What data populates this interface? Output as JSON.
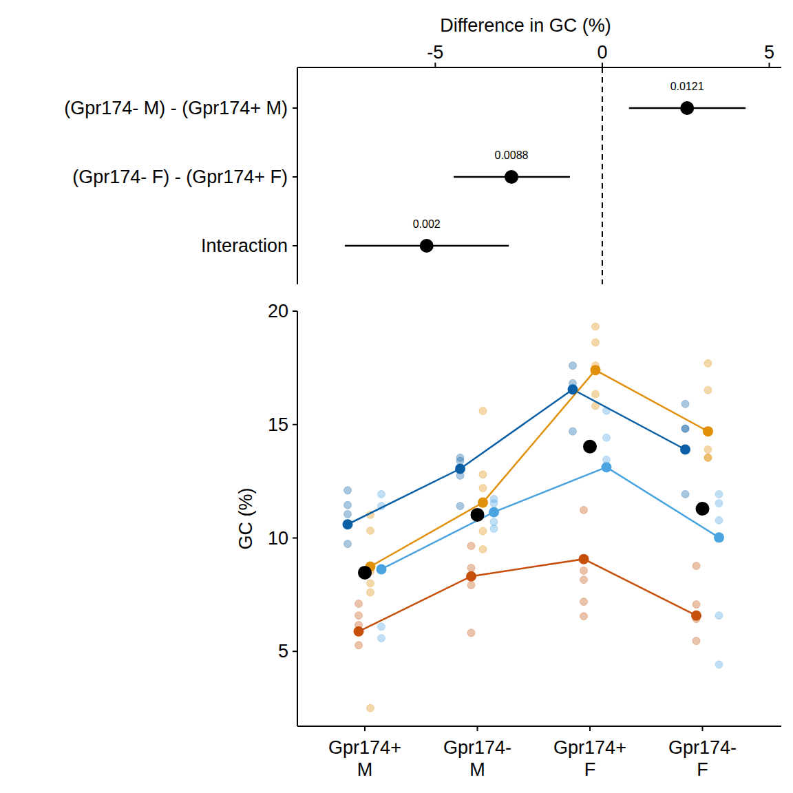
{
  "chart_data": [
    {
      "type": "forest",
      "orientation": "horizontal",
      "xlabel": "Difference in GC (%)",
      "categories": [
        "(Gpr174- M) - (Gpr174+ M)",
        "(Gpr174- F) - (Gpr174+ F)",
        "Interaction"
      ],
      "values": [
        2.54,
        -2.72,
        -5.26
      ],
      "ci_low": [
        0.8,
        -4.45,
        -7.71
      ],
      "ci_high": [
        4.29,
        -0.97,
        -2.8
      ],
      "p_values": [
        0.0121,
        0.0088,
        0.002
      ],
      "ref_line": 0,
      "xlim": [
        -9.13,
        5.36
      ],
      "xticks": [
        -5,
        0,
        5
      ]
    },
    {
      "type": "line",
      "ylabel": "GC (%)",
      "categories": [
        "Gpr174+\nM",
        "Gpr174-\nM",
        "Gpr174+\nF",
        "Gpr174-\nF"
      ],
      "ylim": [
        1.7,
        20
      ],
      "yticks": [
        5,
        10,
        15,
        20
      ],
      "series": [
        {
          "color": "#0b5fa5",
          "marker": "circle",
          "line_style": "solid",
          "values": [
            10.6,
            13.05,
            16.55,
            13.9
          ],
          "points": [
            [
              12.1,
              11.45,
              11.05,
              9.74
            ],
            [
              13.54,
              13.39,
              12.75,
              11.41
            ],
            [
              17.6,
              16.82,
              16.52,
              14.7
            ],
            [
              15.91,
              14.82,
              14.82,
              11.93
            ]
          ]
        },
        {
          "color": "#c64f0c",
          "marker": "circle",
          "line_style": "solid",
          "values": [
            5.88,
            8.31,
            9.07,
            6.58
          ],
          "points": [
            [
              7.1,
              6.58,
              6.16,
              5.27
            ],
            [
              9.65,
              8.68,
              7.92,
              5.82
            ],
            [
              11.23,
              8.56,
              8.16,
              7.19,
              6.55
            ],
            [
              8.77,
              7.07,
              6.43,
              5.46
            ]
          ]
        },
        {
          "color": "#e0900a",
          "marker": "circle",
          "line_style": "solid",
          "values": [
            8.74,
            11.56,
            17.4,
            14.7
          ],
          "points": [
            [
              11.02,
              10.32,
              8.53,
              8.0,
              7.6,
              2.5
            ],
            [
              15.6,
              12.8,
              12.2,
              10.3,
              9.5
            ],
            [
              19.32,
              18.62,
              17.6,
              16.34,
              15.82
            ],
            [
              17.7,
              16.52,
              13.9,
              13.54,
              13.54
            ]
          ]
        },
        {
          "color": "#4ba3df",
          "marker": "circle",
          "line_style": "solid",
          "values": [
            8.62,
            11.14,
            13.12,
            10.02
          ],
          "points": [
            [
              11.93,
              11.41,
              6.09,
              5.58
            ],
            [
              11.72,
              11.53,
              11.17,
              10.71,
              10.41
            ],
            [
              15.61,
              14.42,
              13.45,
              13.12
            ],
            [
              11.93,
              11.53,
              10.78,
              6.58,
              4.42
            ]
          ]
        },
        {
          "color": "#000000",
          "marker": "circle",
          "line_style": "none",
          "values": [
            8.47,
            11.02,
            14.03,
            11.29
          ]
        }
      ]
    }
  ]
}
